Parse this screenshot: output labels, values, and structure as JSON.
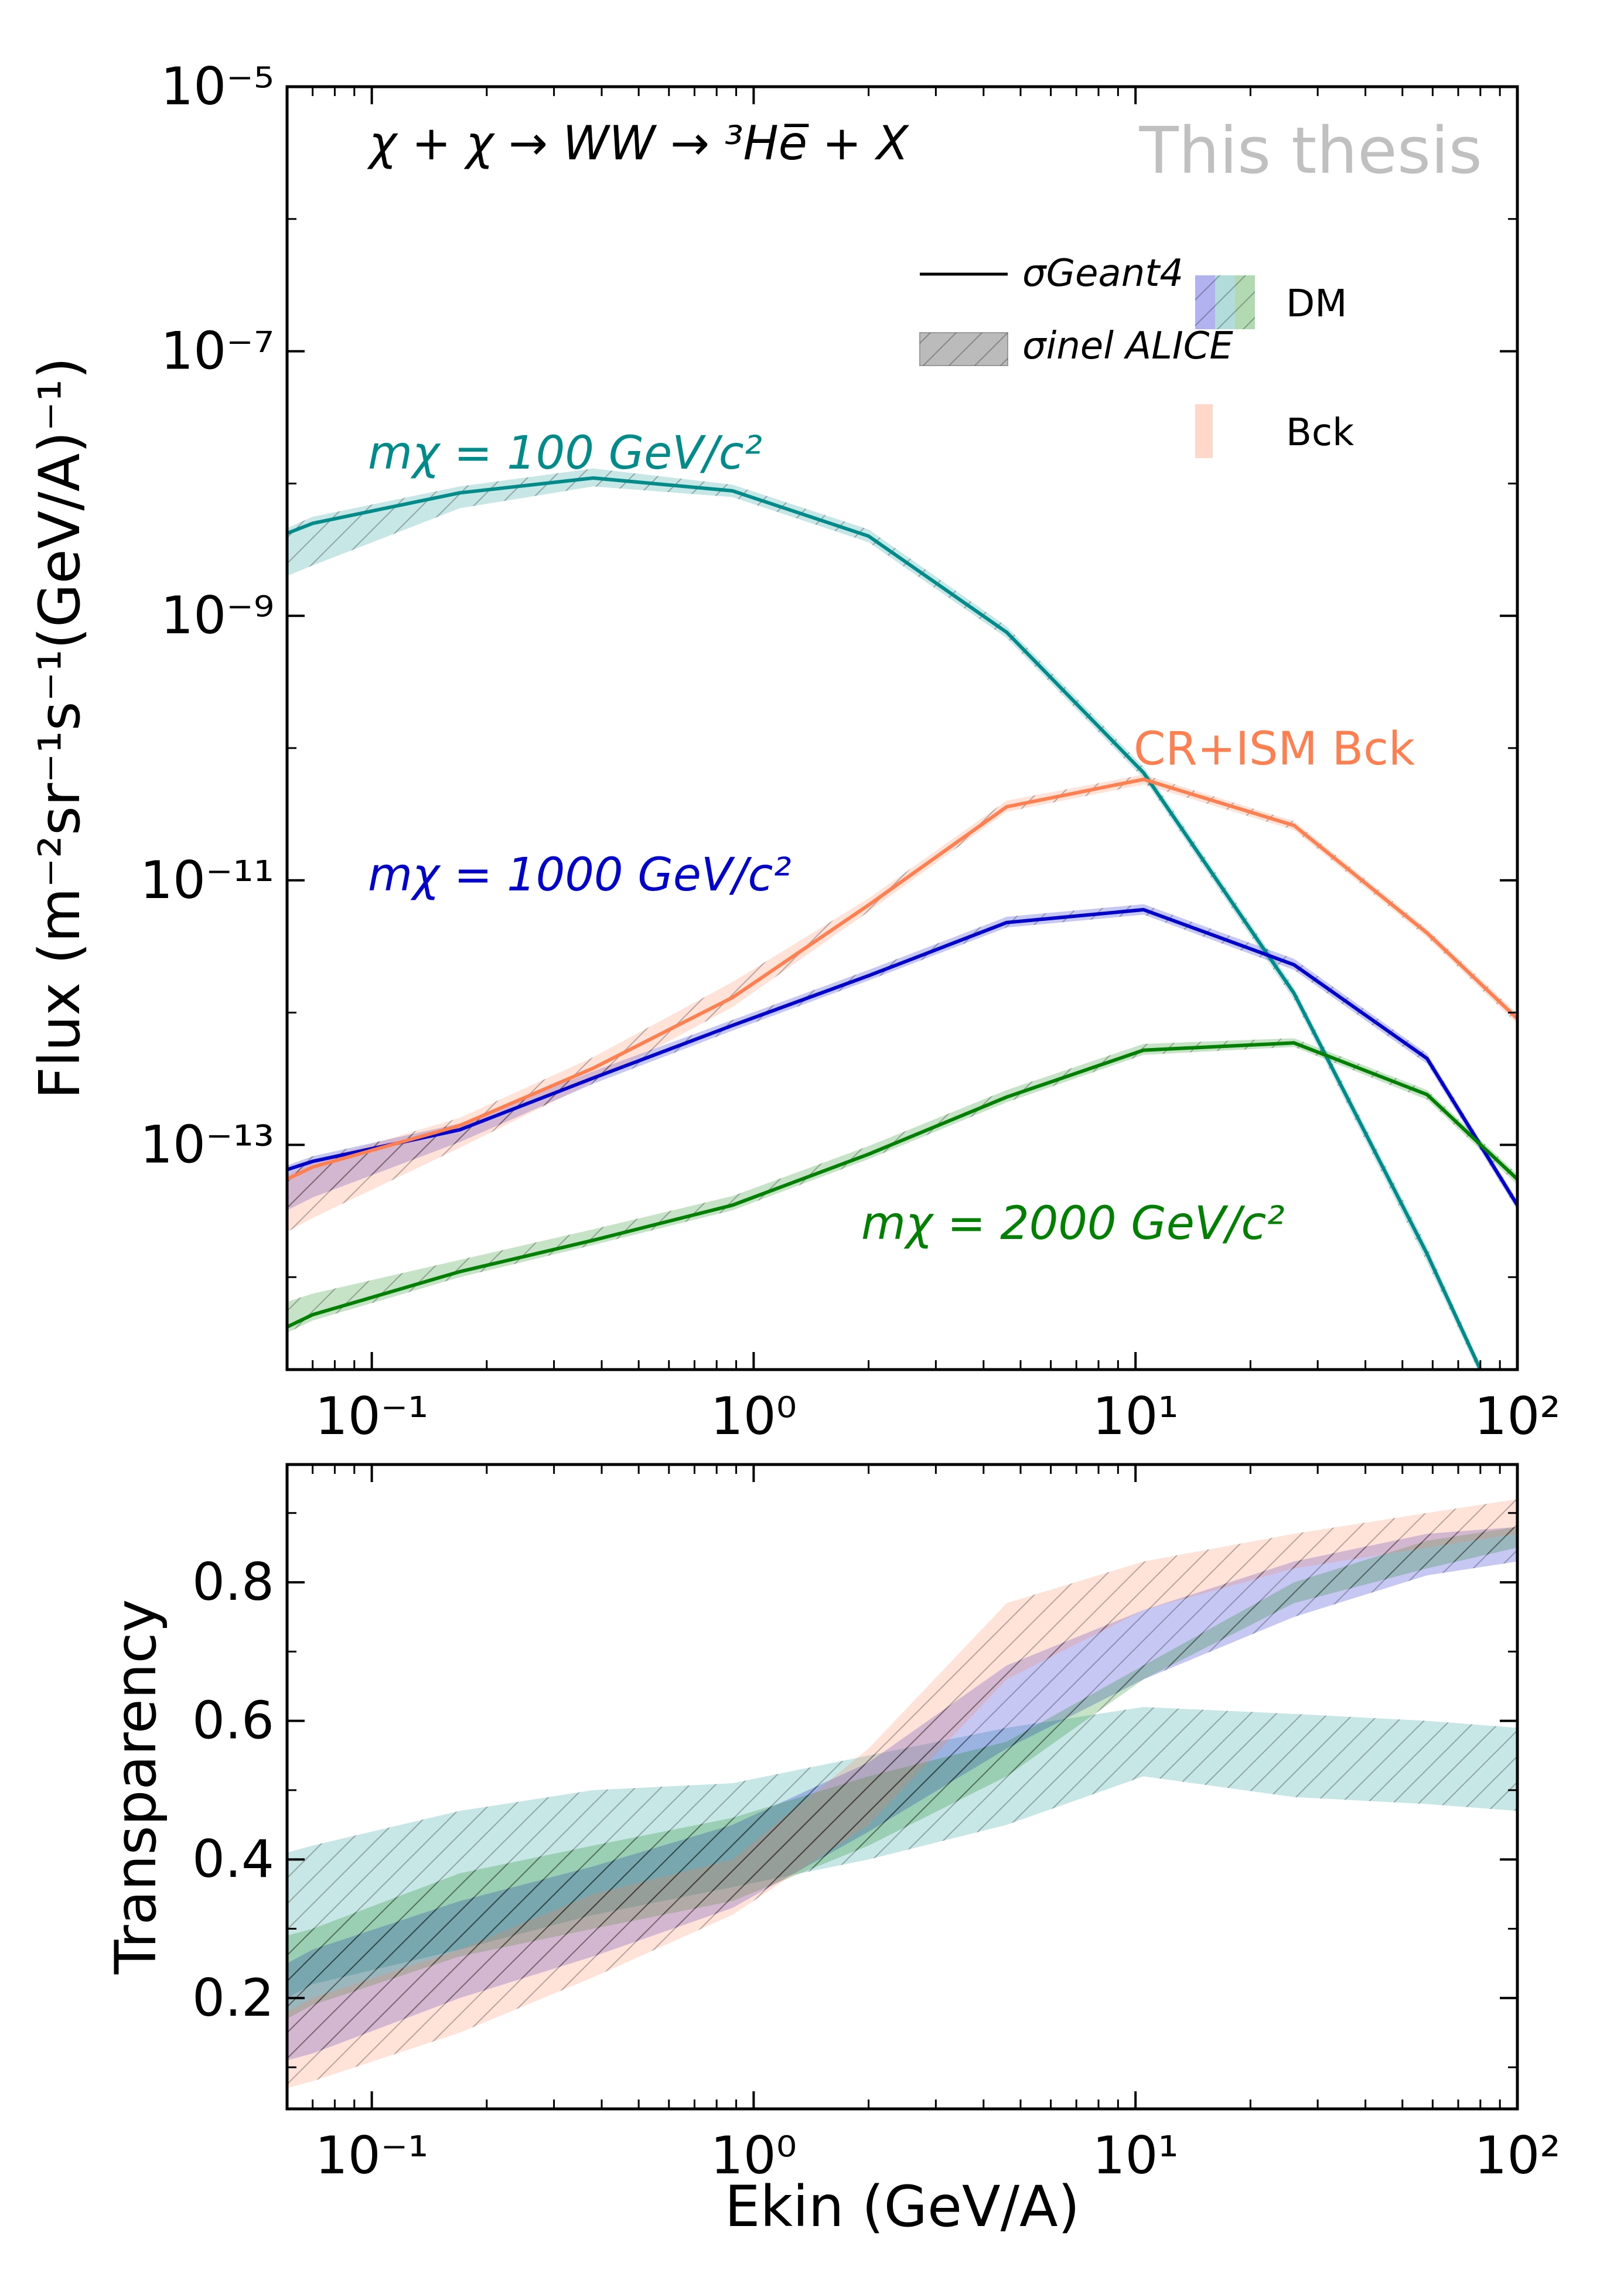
{
  "chart_data": [
    {
      "type": "line",
      "x_scale": "log",
      "y_scale": "log",
      "xlim": [
        0.06,
        100
      ],
      "ylim": [
        2e-15,
        1e-05
      ],
      "ylabel": "Flux (m⁻²sr⁻¹s⁻¹(GeV/A)⁻¹)",
      "x_ticks": [
        0.1,
        1,
        10,
        100
      ],
      "x_tick_labels": [
        "10⁻¹",
        "10⁰",
        "10¹",
        "10²"
      ],
      "y_ticks": [
        1e-13,
        1e-11,
        1e-09,
        1e-07,
        1e-05
      ],
      "y_tick_labels": [
        "10⁻¹³",
        "10⁻¹¹",
        "10⁻⁹",
        "10⁻⁷",
        "10⁻⁵"
      ],
      "annotation": "χ + χ → WW → ³He̅ + X",
      "watermark": "This thesis",
      "legend": {
        "placement": "top-right",
        "geant4": "σGeant4",
        "alice": "σinel ALICE",
        "dm": "DM",
        "bck": "Bck"
      },
      "series": [
        {
          "name": "mχ = 100 GeV/c²",
          "color": "#008b8b",
          "x": [
            0.06,
            0.07,
            0.17,
            0.38,
            0.88,
            2.0,
            4.6,
            10.5,
            26,
            58,
            80
          ],
          "y": [
            4.2e-09,
            5e-09,
            8.5e-09,
            1.1e-08,
            8.8e-09,
            4e-09,
            7.5e-10,
            6.5e-11,
            1.4e-12,
            1.5e-14,
            2e-15
          ],
          "band_low": [
            2e-09,
            2.4e-09,
            6.5e-09,
            9.5e-09,
            7.9e-09,
            3.6e-09,
            6.8e-10,
            5.9e-11,
            1.25e-12,
            1.3e-14,
            1.8e-15
          ],
          "band_high": [
            4.6e-09,
            5.6e-09,
            9.5e-09,
            1.3e-08,
            9.8e-09,
            4.5e-09,
            8.3e-10,
            7.2e-11,
            1.55e-12,
            1.7e-14,
            2.2e-15
          ]
        },
        {
          "name": "mχ = 1000 GeV/c²",
          "color": "#0000cd",
          "x": [
            0.06,
            0.07,
            0.17,
            0.38,
            0.88,
            2.0,
            4.6,
            10.5,
            26,
            58,
            100
          ],
          "y": [
            6.5e-14,
            7.5e-14,
            1.3e-13,
            3.2e-13,
            8e-13,
            1.9e-12,
            4.8e-12,
            6e-12,
            2.3e-12,
            4.5e-13,
            3.5e-14
          ],
          "band_low": [
            3.2e-14,
            4e-14,
            1.05e-13,
            2.9e-13,
            7.3e-13,
            1.75e-12,
            4.4e-12,
            5.5e-12,
            2.1e-12,
            4.1e-13,
            3.2e-14
          ],
          "band_high": [
            7e-14,
            8.2e-14,
            1.45e-13,
            3.6e-13,
            8.8e-13,
            2.1e-12,
            5.3e-12,
            6.6e-12,
            2.55e-12,
            4.9e-13,
            3.8e-14
          ]
        },
        {
          "name": "mχ = 2000 GeV/c²",
          "color": "#008000",
          "x": [
            0.06,
            0.07,
            0.17,
            0.38,
            0.88,
            2.0,
            4.6,
            10.5,
            26,
            58,
            100
          ],
          "y": [
            4.2e-15,
            5.2e-15,
            1.1e-14,
            1.9e-14,
            3.5e-14,
            8.5e-14,
            2.3e-13,
            5.2e-13,
            5.9e-13,
            2.4e-13,
            5.5e-14
          ],
          "band_low": [
            3.8e-15,
            4.7e-15,
            1e-14,
            1.75e-14,
            3.2e-14,
            7.8e-14,
            2.1e-13,
            4.8e-13,
            5.5e-13,
            2.2e-13,
            5e-14
          ],
          "band_high": [
            6.5e-15,
            7.5e-15,
            1.35e-14,
            2.3e-14,
            4.1e-14,
            9.8e-14,
            2.6e-13,
            5.8e-13,
            6.4e-13,
            2.6e-13,
            6e-14
          ]
        },
        {
          "name": "CR+ISM Bck",
          "color": "#ff7f50",
          "x": [
            0.06,
            0.07,
            0.17,
            0.38,
            0.88,
            2.0,
            4.6,
            10.5,
            26,
            58,
            100
          ],
          "y": [
            5.5e-14,
            6.8e-14,
            1.4e-13,
            3.8e-13,
            1.3e-12,
            6.5e-12,
            3.6e-11,
            5.8e-11,
            2.6e-11,
            4e-12,
            9e-13
          ],
          "band_low": [
            2.2e-14,
            2.8e-14,
            9.5e-14,
            3e-13,
            1.1e-12,
            5.8e-12,
            3.3e-11,
            5.3e-11,
            2.4e-11,
            3.7e-12,
            8.2e-13
          ],
          "band_high": [
            6e-14,
            7.5e-14,
            1.6e-13,
            4.6e-13,
            1.7e-12,
            7.3e-12,
            4e-11,
            6.3e-11,
            2.8e-11,
            4.3e-12,
            9.8e-13
          ]
        }
      ]
    },
    {
      "type": "area",
      "x_scale": "log",
      "xlim": [
        0.06,
        100
      ],
      "ylim": [
        0.04,
        0.97
      ],
      "xlabel": "Ekin (GeV/A)",
      "ylabel": "Transparency",
      "x_ticks": [
        0.1,
        1,
        10,
        100
      ],
      "x_tick_labels": [
        "10⁻¹",
        "10⁰",
        "10¹",
        "10²"
      ],
      "y_ticks": [
        0.2,
        0.4,
        0.6,
        0.8
      ],
      "y_tick_labels": [
        "0.2",
        "0.4",
        "0.6",
        "0.8"
      ],
      "series": [
        {
          "name": "mχ = 100 GeV/c²",
          "color": "#008b8b",
          "x": [
            0.06,
            0.07,
            0.17,
            0.38,
            0.88,
            2.0,
            4.6,
            10.5,
            26,
            58,
            100
          ],
          "low": [
            0.2,
            0.22,
            0.27,
            0.32,
            0.36,
            0.4,
            0.45,
            0.52,
            0.49,
            0.48,
            0.47
          ],
          "high": [
            0.41,
            0.42,
            0.47,
            0.5,
            0.51,
            0.55,
            0.59,
            0.62,
            0.61,
            0.6,
            0.59
          ]
        },
        {
          "name": "mχ = 1000 GeV/c²",
          "color": "#0000cd",
          "x": [
            0.06,
            0.07,
            0.17,
            0.38,
            0.88,
            2.0,
            4.6,
            10.5,
            26,
            58,
            100
          ],
          "low": [
            0.11,
            0.12,
            0.2,
            0.26,
            0.33,
            0.44,
            0.56,
            0.66,
            0.75,
            0.81,
            0.83
          ],
          "high": [
            0.25,
            0.27,
            0.34,
            0.39,
            0.45,
            0.54,
            0.68,
            0.76,
            0.83,
            0.87,
            0.88
          ]
        },
        {
          "name": "mχ = 2000 GeV/c²",
          "color": "#008000",
          "x": [
            0.06,
            0.07,
            0.17,
            0.38,
            0.88,
            2.0,
            4.6,
            10.5,
            26,
            58,
            100
          ],
          "low": [
            0.17,
            0.19,
            0.26,
            0.3,
            0.34,
            0.42,
            0.52,
            0.66,
            0.77,
            0.82,
            0.85
          ],
          "high": [
            0.29,
            0.3,
            0.38,
            0.42,
            0.46,
            0.52,
            0.57,
            0.68,
            0.8,
            0.86,
            0.88
          ]
        },
        {
          "name": "CR+ISM Bck",
          "color": "#ff7f50",
          "x": [
            0.06,
            0.07,
            0.17,
            0.38,
            0.88,
            2.0,
            4.6,
            10.5,
            26,
            58,
            100
          ],
          "low": [
            0.07,
            0.08,
            0.15,
            0.23,
            0.32,
            0.45,
            0.66,
            0.76,
            0.82,
            0.85,
            0.87
          ],
          "high": [
            0.18,
            0.2,
            0.27,
            0.35,
            0.4,
            0.56,
            0.77,
            0.83,
            0.87,
            0.9,
            0.92
          ]
        }
      ]
    }
  ]
}
